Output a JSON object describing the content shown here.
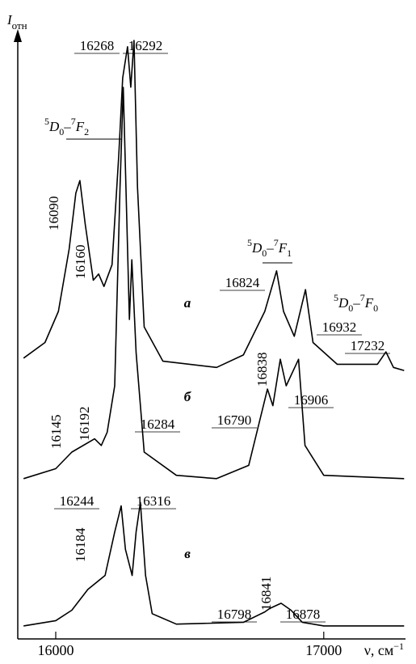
{
  "chart_data": {
    "type": "line",
    "title": "",
    "ylabel_main": "I",
    "ylabel_sub": "отн",
    "xlabel": "ν, см",
    "xlabel_sup": "−1",
    "x_unit": "cm-1",
    "x_ticks": [
      16000,
      17000
    ],
    "x_tick_labels": [
      "16000",
      "17000"
    ],
    "xlim": [
      15840,
      17350
    ],
    "grid": false,
    "legend": "none",
    "series": [
      {
        "name": "а",
        "points": [
          [
            15880,
            0.05
          ],
          [
            15960,
            0.1
          ],
          [
            16010,
            0.2
          ],
          [
            16050,
            0.4
          ],
          [
            16075,
            0.58
          ],
          [
            16090,
            0.62
          ],
          [
            16110,
            0.48
          ],
          [
            16140,
            0.3
          ],
          [
            16160,
            0.32
          ],
          [
            16180,
            0.28
          ],
          [
            16210,
            0.35
          ],
          [
            16235,
            0.7
          ],
          [
            16250,
            0.95
          ],
          [
            16268,
            1.05
          ],
          [
            16280,
            0.92
          ],
          [
            16292,
            1.07
          ],
          [
            16305,
            0.6
          ],
          [
            16330,
            0.15
          ],
          [
            16400,
            0.04
          ],
          [
            16600,
            0.02
          ],
          [
            16700,
            0.06
          ],
          [
            16780,
            0.2
          ],
          [
            16824,
            0.33
          ],
          [
            16850,
            0.2
          ],
          [
            16890,
            0.12
          ],
          [
            16932,
            0.27
          ],
          [
            16960,
            0.1
          ],
          [
            17050,
            0.03
          ],
          [
            17200,
            0.03
          ],
          [
            17232,
            0.07
          ],
          [
            17260,
            0.02
          ],
          [
            17300,
            0.01
          ]
        ],
        "peak_labels": [
          16090,
          16160,
          16268,
          16292,
          16824,
          16932,
          17232
        ]
      },
      {
        "name": "б",
        "points": [
          [
            15880,
            0.02
          ],
          [
            16000,
            0.05
          ],
          [
            16060,
            0.1
          ],
          [
            16145,
            0.14
          ],
          [
            16170,
            0.12
          ],
          [
            16192,
            0.16
          ],
          [
            16220,
            0.3
          ],
          [
            16240,
            0.9
          ],
          [
            16252,
            1.2
          ],
          [
            16262,
            0.9
          ],
          [
            16275,
            0.5
          ],
          [
            16284,
            0.68
          ],
          [
            16300,
            0.4
          ],
          [
            16330,
            0.1
          ],
          [
            16450,
            0.03
          ],
          [
            16600,
            0.02
          ],
          [
            16720,
            0.06
          ],
          [
            16790,
            0.29
          ],
          [
            16810,
            0.24
          ],
          [
            16838,
            0.38
          ],
          [
            16860,
            0.3
          ],
          [
            16906,
            0.38
          ],
          [
            16930,
            0.12
          ],
          [
            17000,
            0.03
          ],
          [
            17300,
            0.02
          ]
        ],
        "peak_labels": [
          16145,
          16192,
          16284,
          16790,
          16838,
          16906
        ]
      },
      {
        "name": "в",
        "points": [
          [
            15880,
            0.01
          ],
          [
            16000,
            0.04
          ],
          [
            16060,
            0.1
          ],
          [
            16120,
            0.22
          ],
          [
            16184,
            0.3
          ],
          [
            16220,
            0.55
          ],
          [
            16244,
            0.7
          ],
          [
            16260,
            0.45
          ],
          [
            16285,
            0.3
          ],
          [
            16300,
            0.55
          ],
          [
            16316,
            0.72
          ],
          [
            16335,
            0.3
          ],
          [
            16360,
            0.08
          ],
          [
            16450,
            0.02
          ],
          [
            16700,
            0.03
          ],
          [
            16780,
            0.09
          ],
          [
            16798,
            0.11
          ],
          [
            16841,
            0.14
          ],
          [
            16878,
            0.1
          ],
          [
            16920,
            0.03
          ],
          [
            17000,
            0.01
          ],
          [
            17300,
            0.01
          ]
        ],
        "peak_labels": [
          16184,
          16244,
          16316,
          16798,
          16841,
          16878
        ]
      }
    ],
    "transitions": [
      {
        "prefix": "5",
        "d": "D",
        "d_sub": "0",
        "dash": "–",
        "mult": "7",
        "f": "F",
        "f_sub": "2"
      },
      {
        "prefix": "5",
        "d": "D",
        "d_sub": "0",
        "dash": "–",
        "mult": "7",
        "f": "F",
        "f_sub": "1"
      },
      {
        "prefix": "5",
        "d": "D",
        "d_sub": "0",
        "dash": "–",
        "mult": "7",
        "f": "F",
        "f_sub": "0"
      }
    ]
  }
}
